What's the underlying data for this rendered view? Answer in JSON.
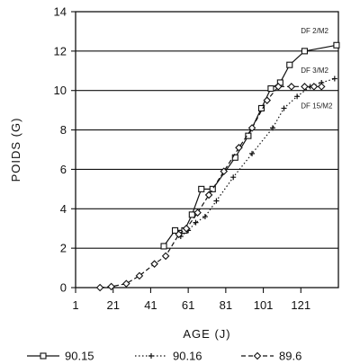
{
  "chart_data": {
    "type": "line",
    "xlabel": "AGE (J)",
    "ylabel": "POIDS (G)",
    "xlim": [
      1,
      141
    ],
    "ylim": [
      0,
      14
    ],
    "xticks": [
      1,
      21,
      41,
      61,
      81,
      101,
      121
    ],
    "yticks": [
      0,
      2,
      4,
      6,
      8,
      10,
      12,
      14
    ],
    "grid": "horizontal",
    "legend": "bottom",
    "annotations": [
      {
        "text": "DF 2/M2",
        "x": 121,
        "y": 12.9
      },
      {
        "text": "DF 3/M2",
        "x": 121,
        "y": 10.9
      },
      {
        "text": "DF 15/M2",
        "x": 121,
        "y": 9.1
      }
    ],
    "series": [
      {
        "name": "90.15",
        "style": "solid",
        "marker": "square",
        "points": [
          [
            48,
            2.1
          ],
          [
            54,
            2.9
          ],
          [
            59,
            2.9
          ],
          [
            63,
            3.7
          ],
          [
            68,
            5.0
          ],
          [
            74,
            5.0
          ],
          [
            86,
            6.6
          ],
          [
            93,
            7.7
          ],
          [
            100,
            9.1
          ],
          [
            105,
            10.1
          ],
          [
            110,
            10.4
          ],
          [
            115,
            11.3
          ],
          [
            123,
            12.0
          ],
          [
            140,
            12.3
          ]
        ]
      },
      {
        "name": "90.16",
        "style": "dotted",
        "marker": "plus",
        "points": [
          [
            57,
            2.6
          ],
          [
            61,
            2.9
          ],
          [
            65,
            3.3
          ],
          [
            70,
            3.6
          ],
          [
            76,
            4.4
          ],
          [
            85,
            5.6
          ],
          [
            95,
            6.8
          ],
          [
            106,
            8.1
          ],
          [
            112,
            9.1
          ],
          [
            119,
            9.7
          ],
          [
            126,
            10.2
          ],
          [
            132,
            10.4
          ],
          [
            139,
            10.6
          ]
        ]
      },
      {
        "name": "89.6",
        "style": "dashed",
        "marker": "diamond",
        "points": [
          [
            14,
            0.0
          ],
          [
            20,
            0.05
          ],
          [
            28,
            0.2
          ],
          [
            35,
            0.6
          ],
          [
            43,
            1.2
          ],
          [
            49,
            1.6
          ],
          [
            56,
            2.7
          ],
          [
            60,
            3.0
          ],
          [
            66,
            3.8
          ],
          [
            72,
            4.7
          ],
          [
            80,
            5.9
          ],
          [
            88,
            7.1
          ],
          [
            95,
            8.1
          ],
          [
            103,
            9.5
          ],
          [
            109,
            10.2
          ],
          [
            116,
            10.2
          ],
          [
            123,
            10.2
          ],
          [
            128,
            10.2
          ],
          [
            132,
            10.2
          ]
        ]
      }
    ]
  }
}
